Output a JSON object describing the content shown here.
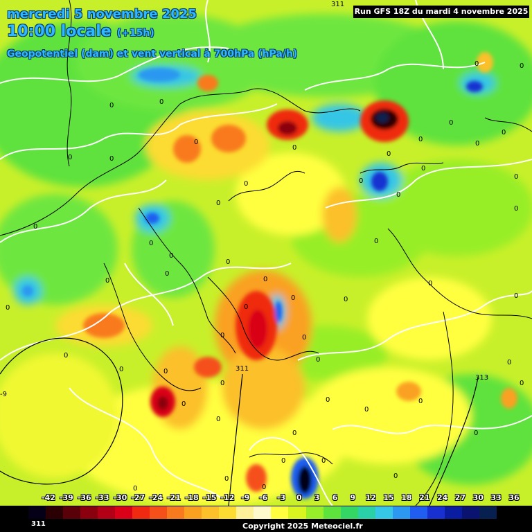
{
  "header": {
    "date_line": "mercredi 5 novembre 2025",
    "time_line": "10:00 locale",
    "lead_time": "(+15h)",
    "field_line": "Geopotentiel (dam) et vent vertical à 700hPa (hPa/h)",
    "run_info": "Run GFS 18Z du mardi 4 novembre 2025"
  },
  "map_labels": {
    "zero": "0",
    "contour_311": "311",
    "contour_313": "313",
    "edge_9": "-9"
  },
  "legend": {
    "values": [
      "-42",
      "-39",
      "-36",
      "-33",
      "-30",
      "-27",
      "-24",
      "-21",
      "-18",
      "-15",
      "-12",
      "-9",
      "-6",
      "-3",
      "0",
      "3",
      "6",
      "9",
      "12",
      "15",
      "18",
      "21",
      "24",
      "27",
      "30",
      "33",
      "36"
    ],
    "colors": [
      "#050018",
      "#2a0004",
      "#5a0008",
      "#8a000e",
      "#b40016",
      "#d90018",
      "#ef2a10",
      "#f5501a",
      "#f87a1e",
      "#faa020",
      "#fbc02a",
      "#fcdc30",
      "#fff09a",
      "#fffacc",
      "#ffff40",
      "#d8f520",
      "#98ee28",
      "#5ee23c",
      "#34d664",
      "#2ad0a8",
      "#36c6e6",
      "#2c98f0",
      "#1f5ef0",
      "#1830d0",
      "#0a1ca0",
      "#0a1470",
      "#082050"
    ],
    "bottom_value": "311"
  },
  "footer": {
    "copyright": "Copyright 2025 Meteociel.fr"
  }
}
